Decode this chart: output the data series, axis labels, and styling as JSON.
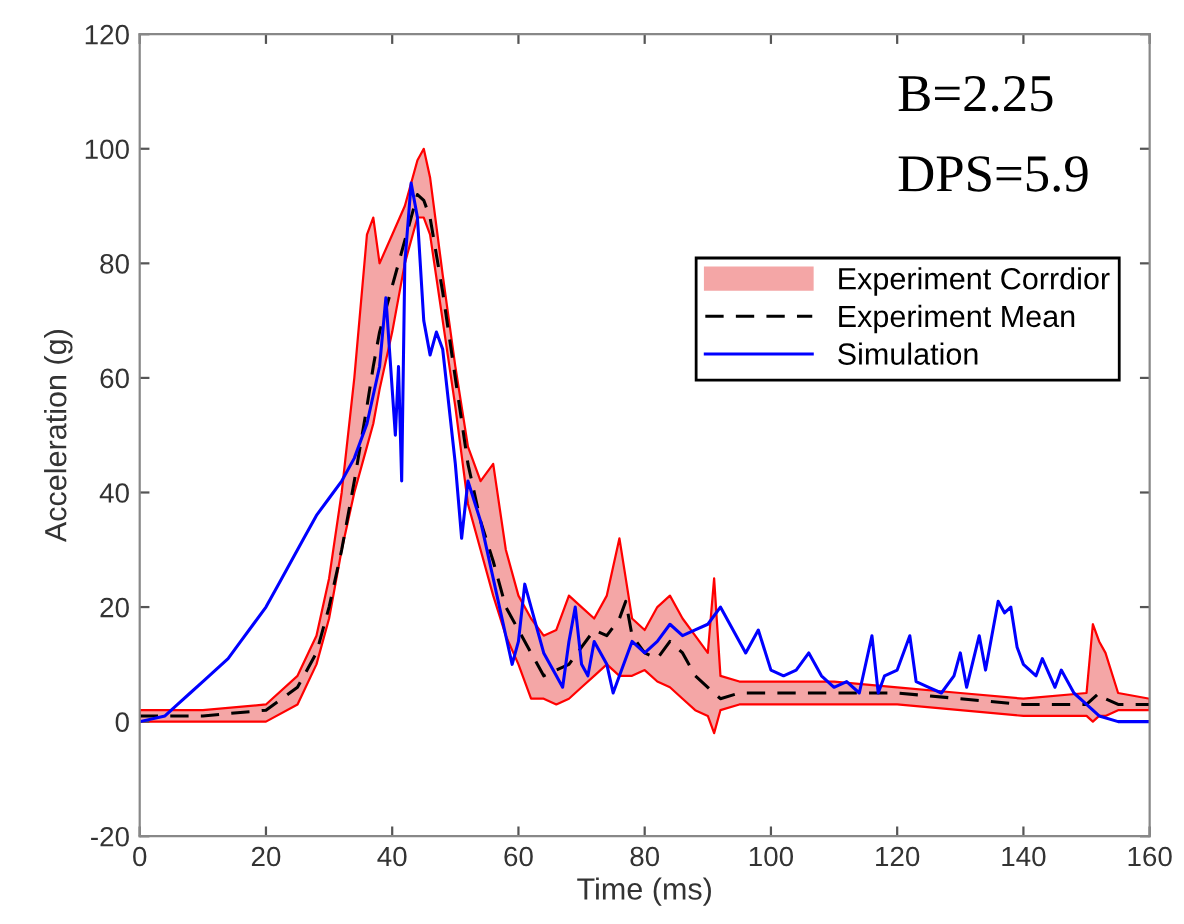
{
  "chart_data": {
    "type": "line",
    "xlabel": "Time (ms)",
    "ylabel": "Acceleration (g)",
    "xlim": [
      0,
      160
    ],
    "ylim": [
      -20,
      120
    ],
    "xticks": [
      0,
      20,
      40,
      60,
      80,
      100,
      120,
      140,
      160
    ],
    "yticks": [
      -20,
      0,
      20,
      40,
      60,
      80,
      100,
      120
    ],
    "grid": false,
    "legend": "top right",
    "annotations": [
      "B=2.25",
      "DPS=5.9"
    ],
    "series": [
      {
        "name": "Experiment Corrdior",
        "type": "area",
        "color": "#f4a6a6"
      },
      {
        "name": "Experiment Mean",
        "color": "#000000",
        "line_style": "dashed",
        "x": [
          0,
          10,
          20,
          25,
          28,
          30,
          32,
          34,
          36,
          37,
          38,
          40,
          42,
          44,
          45,
          46,
          48,
          50,
          52,
          54,
          56,
          58,
          60,
          62,
          64,
          66,
          68,
          70,
          72,
          74,
          76,
          77,
          78,
          80,
          82,
          84,
          86,
          88,
          90,
          91,
          92,
          95,
          100,
          110,
          120,
          130,
          140,
          150,
          151,
          152,
          153,
          155,
          160
        ],
        "values": [
          1,
          1,
          2,
          6,
          12,
          20,
          30,
          42,
          55,
          62,
          68,
          76,
          84,
          92,
          91,
          88,
          75,
          60,
          45,
          35,
          28,
          20,
          16,
          12,
          8,
          9,
          10,
          13,
          16,
          15,
          18,
          21,
          15,
          12,
          11,
          14,
          12,
          8,
          6,
          5,
          4,
          5,
          5,
          5,
          5,
          4,
          3,
          3,
          4,
          5,
          4,
          3,
          3
        ],
        "lower": [
          0,
          0,
          0,
          3,
          10,
          18,
          30,
          40,
          48,
          52,
          58,
          68,
          80,
          88,
          88,
          85,
          70,
          55,
          38,
          30,
          22,
          15,
          10,
          4,
          4,
          3,
          4,
          6,
          8,
          10,
          8,
          8,
          8,
          9,
          7,
          6,
          4,
          2,
          1,
          -2,
          2,
          3,
          3,
          3,
          3,
          2,
          1,
          1,
          0,
          1,
          1,
          2,
          2
        ],
        "upper": [
          2,
          2,
          3,
          8,
          15,
          25,
          40,
          60,
          85,
          88,
          80,
          85,
          90,
          98,
          100,
          95,
          78,
          62,
          48,
          42,
          45,
          30,
          22,
          18,
          15,
          16,
          22,
          20,
          18,
          22,
          32,
          25,
          18,
          16,
          20,
          22,
          18,
          15,
          12,
          25,
          8,
          7,
          7,
          7,
          6,
          5,
          4,
          5,
          17,
          14,
          12,
          5,
          4
        ]
      },
      {
        "name": "Simulation",
        "color": "#0000ff",
        "line_style": "solid",
        "x": [
          0,
          4,
          6,
          8,
          10,
          12,
          14,
          16,
          18,
          20,
          22,
          24,
          26,
          28,
          30,
          32,
          34,
          36,
          38,
          39,
          40,
          40.5,
          41,
          41.5,
          42,
          43,
          44,
          45,
          46,
          47,
          48,
          50,
          51,
          52,
          54,
          56,
          58,
          59,
          60,
          61,
          62,
          64,
          66,
          67,
          68,
          69,
          70,
          71,
          72,
          74,
          75,
          76,
          78,
          80,
          82,
          84,
          86,
          88,
          90,
          92,
          93,
          95,
          96,
          98,
          100,
          102,
          104,
          106,
          108,
          110,
          112,
          114,
          116,
          117,
          118,
          120,
          122,
          123,
          125,
          127,
          129,
          130,
          131,
          133,
          134,
          136,
          137,
          138,
          139,
          140,
          142,
          143,
          145,
          146,
          148,
          150,
          152,
          155,
          160
        ],
        "values": [
          0,
          1,
          3,
          5,
          7,
          9,
          11,
          14,
          17,
          20,
          24,
          28,
          32,
          36,
          39,
          42,
          46,
          52,
          62,
          74,
          58,
          50,
          62,
          42,
          80,
          94,
          88,
          70,
          64,
          68,
          65,
          45,
          32,
          42,
          35,
          25,
          15,
          10,
          14,
          24,
          20,
          12,
          8,
          6,
          14,
          20,
          10,
          8,
          14,
          10,
          5,
          8,
          14,
          12,
          14,
          17,
          15,
          16,
          17,
          20,
          18,
          14,
          12,
          16,
          9,
          8,
          9,
          12,
          8,
          6,
          7,
          5,
          15,
          5,
          8,
          9,
          15,
          7,
          6,
          5,
          8,
          12,
          6,
          15,
          9,
          21,
          19,
          20,
          13,
          10,
          8,
          11,
          6,
          9,
          5,
          3,
          1,
          0,
          0
        ]
      }
    ]
  }
}
